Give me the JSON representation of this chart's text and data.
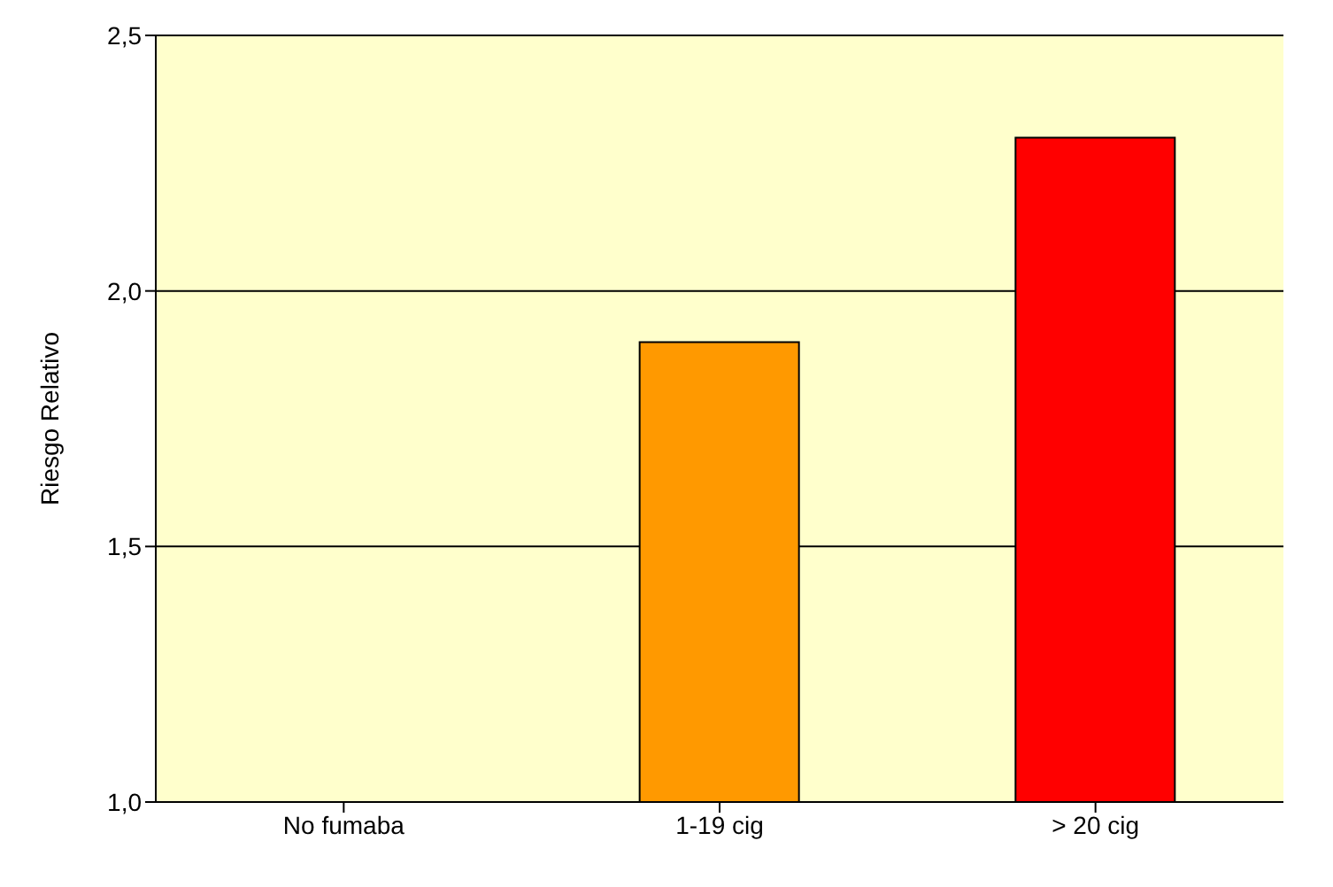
{
  "chart_data": {
    "type": "bar",
    "ylabel": "Riesgo Relativo",
    "categories": [
      "No fumaba",
      "1-19 cig",
      "> 20 cig"
    ],
    "values": [
      1.0,
      1.9,
      2.3
    ],
    "colors": [
      "#9999ff",
      "#ff9900",
      "#ff0000"
    ],
    "ylim": [
      1.0,
      2.5
    ],
    "yticks": [
      {
        "value": 1.0,
        "label": "1,0"
      },
      {
        "value": 1.5,
        "label": "1,5"
      },
      {
        "value": 2.0,
        "label": "2,0"
      },
      {
        "value": 2.5,
        "label": "2,5"
      }
    ],
    "grid": "y"
  }
}
